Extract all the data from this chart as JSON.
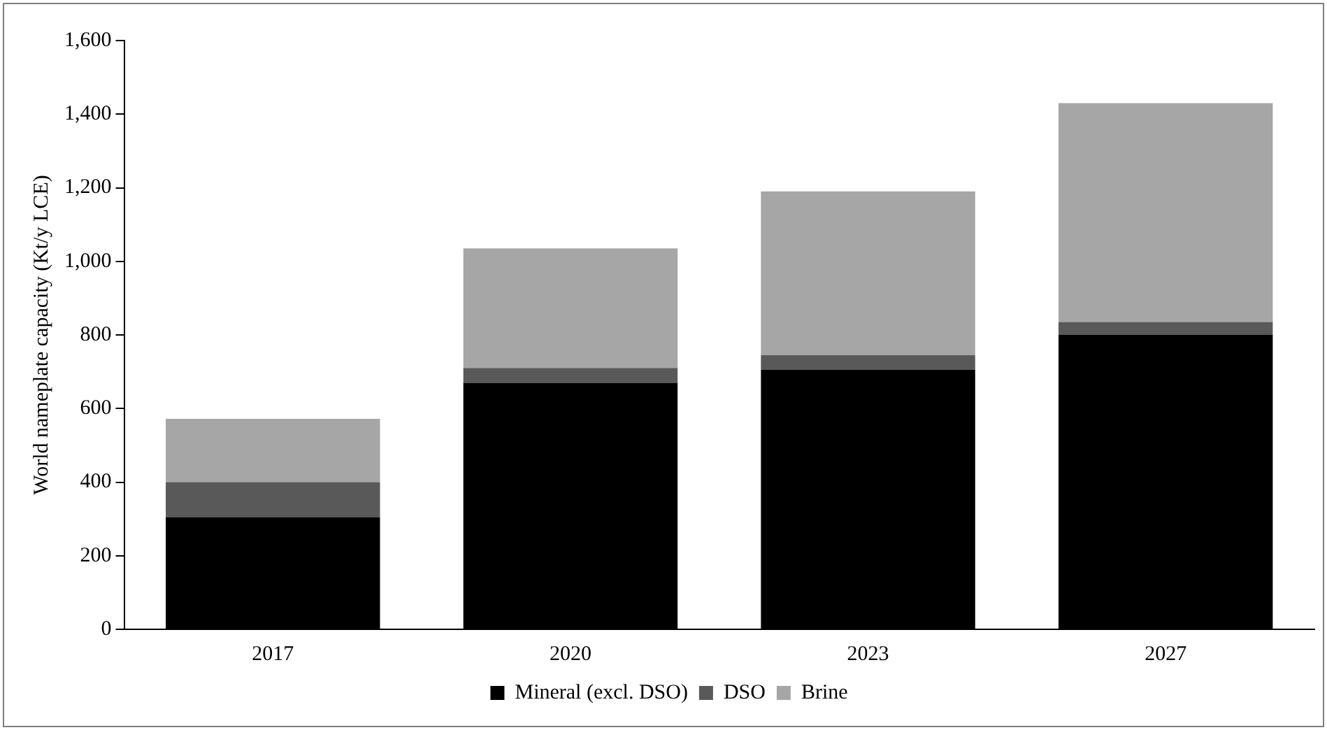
{
  "chart_data": {
    "type": "bar",
    "stacked": true,
    "ylabel": "World nameplate capacity (Kt/y LCE)",
    "categories": [
      "2017",
      "2020",
      "2023",
      "2027"
    ],
    "series": [
      {
        "name": "Mineral (excl. DSO)",
        "color": "#000000",
        "values": [
          305,
          670,
          705,
          800
        ]
      },
      {
        "name": "DSO",
        "color": "#595959",
        "values": [
          95,
          40,
          40,
          35
        ]
      },
      {
        "name": "Brine",
        "color": "#a6a6a6",
        "values": [
          172,
          325,
          445,
          595
        ]
      }
    ],
    "ylim": [
      0,
      1600
    ],
    "yticks": [
      {
        "value": 0,
        "label": "0"
      },
      {
        "value": 200,
        "label": "200"
      },
      {
        "value": 400,
        "label": "400"
      },
      {
        "value": 600,
        "label": "600"
      },
      {
        "value": 800,
        "label": "800"
      },
      {
        "value": 1000,
        "label": "1,000"
      },
      {
        "value": 1200,
        "label": "1,200"
      },
      {
        "value": 1400,
        "label": "1,400"
      },
      {
        "value": 1600,
        "label": "1,600"
      }
    ],
    "grid": false,
    "legend": "bottom"
  }
}
